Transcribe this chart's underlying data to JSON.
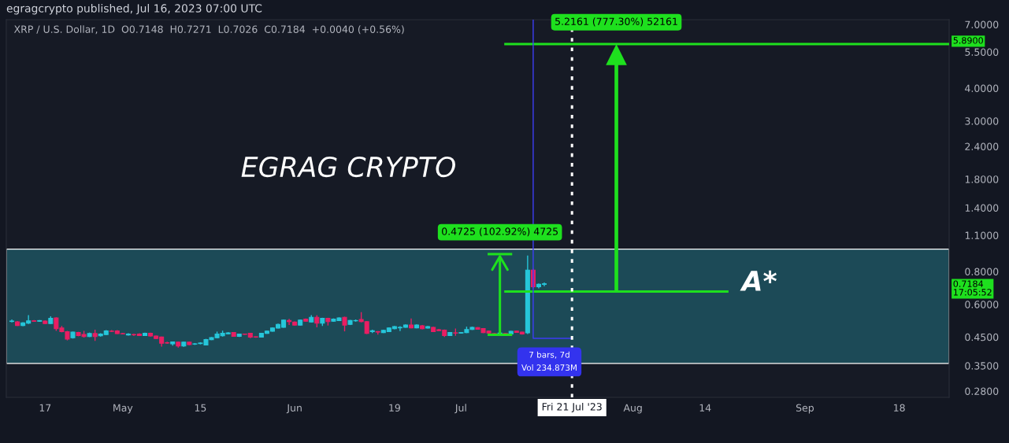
{
  "chart_data": {
    "type": "candlestick",
    "title": "egragcrypto published, Jul 16, 2023 07:00 UTC",
    "subtitle": "XRP / U.S. Dollar, 1D  O0.7148  H0.7271  L0.7026  C0.7184  +0.0040 (+0.56%)",
    "x": [
      "2023-04-11",
      "2023-04-12",
      "2023-04-13",
      "2023-04-14",
      "2023-04-15",
      "2023-04-16",
      "2023-04-17",
      "2023-04-18",
      "2023-04-19",
      "2023-04-20",
      "2023-04-21",
      "2023-04-22",
      "2023-04-23",
      "2023-04-24",
      "2023-04-25",
      "2023-04-26",
      "2023-04-27",
      "2023-04-28",
      "2023-04-29",
      "2023-04-30",
      "2023-05-01",
      "2023-05-02",
      "2023-05-03",
      "2023-05-04",
      "2023-05-05",
      "2023-05-06",
      "2023-05-07",
      "2023-05-08",
      "2023-05-09",
      "2023-05-10",
      "2023-05-11",
      "2023-05-12",
      "2023-05-13",
      "2023-05-14",
      "2023-05-15",
      "2023-05-16",
      "2023-05-17",
      "2023-05-18",
      "2023-05-19",
      "2023-05-20",
      "2023-05-21",
      "2023-05-22",
      "2023-05-23",
      "2023-05-24",
      "2023-05-25",
      "2023-05-26",
      "2023-05-27",
      "2023-05-28",
      "2023-05-29",
      "2023-05-30",
      "2023-05-31",
      "2023-06-01",
      "2023-06-02",
      "2023-06-03",
      "2023-06-04",
      "2023-06-05",
      "2023-06-06",
      "2023-06-07",
      "2023-06-08",
      "2023-06-09",
      "2023-06-10",
      "2023-06-11",
      "2023-06-12",
      "2023-06-13",
      "2023-06-14",
      "2023-06-15",
      "2023-06-16",
      "2023-06-17",
      "2023-06-18",
      "2023-06-19",
      "2023-06-20",
      "2023-06-21",
      "2023-06-22",
      "2023-06-23",
      "2023-06-24",
      "2023-06-25",
      "2023-06-26",
      "2023-06-27",
      "2023-06-28",
      "2023-06-29",
      "2023-06-30",
      "2023-07-01",
      "2023-07-02",
      "2023-07-03",
      "2023-07-04",
      "2023-07-05",
      "2023-07-06",
      "2023-07-07",
      "2023-07-08",
      "2023-07-09",
      "2023-07-10",
      "2023-07-11",
      "2023-07-12",
      "2023-07-13",
      "2023-07-14",
      "2023-07-15",
      "2023-07-16"
    ],
    "ohlc": [
      [
        0.516,
        0.525,
        0.512,
        0.518
      ],
      [
        0.514,
        0.518,
        0.496,
        0.498
      ],
      [
        0.498,
        0.513,
        0.495,
        0.51
      ],
      [
        0.508,
        0.545,
        0.505,
        0.519
      ],
      [
        0.519,
        0.522,
        0.514,
        0.517
      ],
      [
        0.517,
        0.522,
        0.514,
        0.52
      ],
      [
        0.518,
        0.521,
        0.505,
        0.507
      ],
      [
        0.507,
        0.54,
        0.505,
        0.53
      ],
      [
        0.532,
        0.535,
        0.475,
        0.484
      ],
      [
        0.487,
        0.496,
        0.469,
        0.472
      ],
      [
        0.472,
        0.475,
        0.437,
        0.442
      ],
      [
        0.447,
        0.472,
        0.444,
        0.47
      ],
      [
        0.468,
        0.471,
        0.453,
        0.456
      ],
      [
        0.46,
        0.475,
        0.448,
        0.452
      ],
      [
        0.452,
        0.468,
        0.45,
        0.464
      ],
      [
        0.464,
        0.48,
        0.435,
        0.452
      ],
      [
        0.455,
        0.465,
        0.452,
        0.462
      ],
      [
        0.46,
        0.478,
        0.458,
        0.475
      ],
      [
        0.474,
        0.478,
        0.47,
        0.473
      ],
      [
        0.475,
        0.478,
        0.462,
        0.464
      ],
      [
        0.464,
        0.467,
        0.461,
        0.463
      ],
      [
        0.458,
        0.465,
        0.456,
        0.462
      ],
      [
        0.46,
        0.464,
        0.454,
        0.459
      ],
      [
        0.462,
        0.465,
        0.454,
        0.456
      ],
      [
        0.456,
        0.468,
        0.454,
        0.465
      ],
      [
        0.465,
        0.468,
        0.452,
        0.454
      ],
      [
        0.454,
        0.456,
        0.442,
        0.444
      ],
      [
        0.45,
        0.452,
        0.414,
        0.426
      ],
      [
        0.428,
        0.432,
        0.424,
        0.427
      ],
      [
        0.424,
        0.433,
        0.417,
        0.431
      ],
      [
        0.43,
        0.433,
        0.41,
        0.416
      ],
      [
        0.416,
        0.432,
        0.413,
        0.43
      ],
      [
        0.43,
        0.432,
        0.419,
        0.421
      ],
      [
        0.423,
        0.427,
        0.42,
        0.424
      ],
      [
        0.425,
        0.43,
        0.422,
        0.427
      ],
      [
        0.42,
        0.443,
        0.418,
        0.44
      ],
      [
        0.44,
        0.45,
        0.438,
        0.448
      ],
      [
        0.447,
        0.472,
        0.445,
        0.462
      ],
      [
        0.455,
        0.476,
        0.452,
        0.465
      ],
      [
        0.463,
        0.47,
        0.461,
        0.467
      ],
      [
        0.468,
        0.47,
        0.451,
        0.453
      ],
      [
        0.453,
        0.464,
        0.45,
        0.462
      ],
      [
        0.462,
        0.464,
        0.459,
        0.461
      ],
      [
        0.465,
        0.467,
        0.446,
        0.45
      ],
      [
        0.451,
        0.453,
        0.447,
        0.45
      ],
      [
        0.45,
        0.467,
        0.448,
        0.465
      ],
      [
        0.465,
        0.477,
        0.463,
        0.474
      ],
      [
        0.474,
        0.49,
        0.472,
        0.487
      ],
      [
        0.487,
        0.506,
        0.485,
        0.503
      ],
      [
        0.49,
        0.525,
        0.488,
        0.522
      ],
      [
        0.52,
        0.528,
        0.5,
        0.515
      ],
      [
        0.513,
        0.516,
        0.498,
        0.5
      ],
      [
        0.5,
        0.525,
        0.498,
        0.522
      ],
      [
        0.527,
        0.53,
        0.515,
        0.517
      ],
      [
        0.514,
        0.545,
        0.512,
        0.535
      ],
      [
        0.535,
        0.545,
        0.49,
        0.508
      ],
      [
        0.508,
        0.533,
        0.496,
        0.53
      ],
      [
        0.53,
        0.533,
        0.498,
        0.515
      ],
      [
        0.517,
        0.53,
        0.515,
        0.527
      ],
      [
        0.52,
        0.535,
        0.518,
        0.532
      ],
      [
        0.535,
        0.538,
        0.473,
        0.5
      ],
      [
        0.503,
        0.523,
        0.5,
        0.52
      ],
      [
        0.519,
        0.525,
        0.515,
        0.52
      ],
      [
        0.525,
        0.56,
        0.512,
        0.515
      ],
      [
        0.515,
        0.518,
        0.462,
        0.465
      ],
      [
        0.472,
        0.48,
        0.466,
        0.476
      ],
      [
        0.472,
        0.474,
        0.46,
        0.47
      ],
      [
        0.468,
        0.48,
        0.466,
        0.477
      ],
      [
        0.472,
        0.49,
        0.47,
        0.487
      ],
      [
        0.484,
        0.496,
        0.482,
        0.493
      ],
      [
        0.488,
        0.495,
        0.474,
        0.49
      ],
      [
        0.49,
        0.503,
        0.488,
        0.5
      ],
      [
        0.5,
        0.53,
        0.486,
        0.488
      ],
      [
        0.488,
        0.503,
        0.486,
        0.5
      ],
      [
        0.497,
        0.5,
        0.482,
        0.484
      ],
      [
        0.487,
        0.496,
        0.485,
        0.493
      ],
      [
        0.49,
        0.493,
        0.47,
        0.472
      ],
      [
        0.48,
        0.483,
        0.474,
        0.476
      ],
      [
        0.478,
        0.481,
        0.45,
        0.456
      ],
      [
        0.456,
        0.47,
        0.454,
        0.468
      ],
      [
        0.467,
        0.485,
        0.455,
        0.466
      ],
      [
        0.466,
        0.47,
        0.464,
        0.468
      ],
      [
        0.468,
        0.493,
        0.466,
        0.481
      ],
      [
        0.481,
        0.493,
        0.479,
        0.49
      ],
      [
        0.489,
        0.491,
        0.48,
        0.482
      ],
      [
        0.485,
        0.487,
        0.466,
        0.468
      ],
      [
        0.474,
        0.476,
        0.464,
        0.466
      ],
      [
        0.464,
        0.466,
        0.461,
        0.463
      ],
      [
        0.465,
        0.468,
        0.463,
        0.466
      ],
      [
        0.464,
        0.466,
        0.457,
        0.459
      ],
      [
        0.462,
        0.475,
        0.46,
        0.473
      ],
      [
        0.474,
        0.476,
        0.467,
        0.469
      ],
      [
        0.47,
        0.472,
        0.46,
        0.462
      ],
      [
        0.467,
        0.92,
        0.462,
        0.81
      ],
      [
        0.81,
        0.82,
        0.69,
        0.7
      ],
      [
        0.7,
        0.72,
        0.69,
        0.715
      ],
      [
        0.7148,
        0.7271,
        0.7026,
        0.7184
      ]
    ],
    "colors": [
      "#26c6da",
      "#e91e63",
      "#26c6da",
      "#26c6da",
      "#e91e63",
      "#26c6da",
      "#e91e63",
      "#26c6da",
      "#e91e63",
      "#e91e63",
      "#e91e63",
      "#26c6da",
      "#e91e63",
      "#e91e63",
      "#26c6da",
      "#e91e63",
      "#26c6da",
      "#26c6da",
      "#e91e63",
      "#e91e63",
      "#e91e63",
      "#26c6da",
      "#e91e63",
      "#e91e63",
      "#26c6da",
      "#e91e63",
      "#e91e63",
      "#e91e63",
      "#e91e63",
      "#26c6da",
      "#e91e63",
      "#26c6da",
      "#e91e63",
      "#26c6da",
      "#26c6da",
      "#26c6da",
      "#26c6da",
      "#26c6da",
      "#26c6da",
      "#26c6da",
      "#e91e63",
      "#26c6da",
      "#e91e63",
      "#e91e63",
      "#e91e63",
      "#26c6da",
      "#26c6da",
      "#26c6da",
      "#26c6da",
      "#26c6da",
      "#e91e63",
      "#e91e63",
      "#26c6da",
      "#e91e63",
      "#26c6da",
      "#e91e63",
      "#26c6da",
      "#e91e63",
      "#26c6da",
      "#26c6da",
      "#e91e63",
      "#26c6da",
      "#26c6da",
      "#e91e63",
      "#e91e63",
      "#26c6da",
      "#e91e63",
      "#26c6da",
      "#26c6da",
      "#26c6da",
      "#26c6da",
      "#26c6da",
      "#e91e63",
      "#26c6da",
      "#e91e63",
      "#26c6da",
      "#e91e63",
      "#e91e63",
      "#e91e63",
      "#26c6da",
      "#e91e63",
      "#26c6da",
      "#26c6da",
      "#26c6da",
      "#e91e63",
      "#e91e63",
      "#e91e63",
      "#e91e63",
      "#26c6da",
      "#e91e63",
      "#26c6da",
      "#e91e63",
      "#e91e63",
      "#26c6da",
      "#e91e63",
      "#26c6da",
      "#26c6da"
    ],
    "series": [
      {
        "type": "line",
        "color": "#1ee01e",
        "x": [
          "2023-07-06",
          "2023-07-10"
        ],
        "values": [
          0.459,
          0.459
        ]
      },
      {
        "type": "line",
        "color": "#1ee01e",
        "x": [
          "2023-07-06",
          "2023-07-10"
        ],
        "values": [
          0.932,
          0.932
        ]
      },
      {
        "type": "line",
        "color": "#1ee01e",
        "x": [
          "2023-07-09",
          "2023-08-18"
        ],
        "values": [
          0.671,
          0.671
        ]
      },
      {
        "type": "line",
        "color": "#1ee01e",
        "x": [
          "2023-07-09",
          "2023-09-27"
        ],
        "values": [
          5.89,
          5.89
        ]
      },
      {
        "type": "line",
        "color": "#3d3df5",
        "x": [
          "2023-07-14",
          "2023-07-14",
          "2023-07-21"
        ],
        "values": [
          7.3,
          0.445,
          0.445
        ]
      }
    ],
    "marker": "none",
    "line_style": "solid",
    "bands": [
      {
        "axis": "y",
        "from": 0.357,
        "to": 0.974,
        "color": "#1c4a57"
      }
    ],
    "ref_lines": [
      {
        "axis": "x",
        "value": "2023-07-21",
        "label": "Fri 21 Jul '23",
        "color": "#ffffff",
        "line_style": "dotted"
      }
    ],
    "annotations": [
      {
        "text": "0.4725 (102.92%) 4725",
        "x": "2023-07-08",
        "y": 0.932
      },
      {
        "text": "5.2161 (777.30%) 52161",
        "x": "2023-07-29",
        "y": 5.89
      },
      "EGRAG CRYPTO",
      "A*",
      "7 bars, 7d\nVol 234.873M",
      "5.8900",
      "0.7184\n17:05:52"
    ],
    "log": "y",
    "grid": false,
    "xlim": [
      "2023-04-10",
      "2023-09-27"
    ],
    "xticks": [
      {
        "value": "2023-04-17",
        "label": "17"
      },
      {
        "value": "2023-05-01",
        "label": "May"
      },
      {
        "value": "2023-05-15",
        "label": "15"
      },
      {
        "value": "2023-06-01",
        "label": "Jun"
      },
      {
        "value": "2023-06-19",
        "label": "19"
      },
      {
        "value": "2023-07-01",
        "label": "Jul"
      },
      {
        "value": "2023-08-01",
        "label": "Aug"
      },
      {
        "value": "2023-08-14",
        "label": "14"
      },
      {
        "value": "2023-09-01",
        "label": "Sep"
      },
      {
        "value": "2023-09-18",
        "label": "18"
      }
    ],
    "ylim": [
      0.265,
      7.3
    ],
    "yticks": [
      {
        "value": 0.28,
        "label": "0.2800"
      },
      {
        "value": 0.35,
        "label": "0.3500"
      },
      {
        "value": 0.45,
        "label": "0.4500"
      },
      {
        "value": 0.6,
        "label": "0.6000"
      },
      {
        "value": 0.8,
        "label": "0.8000"
      },
      {
        "value": 1.1,
        "label": "1.1000"
      },
      {
        "value": 1.4,
        "label": "1.4000"
      },
      {
        "value": 1.8,
        "label": "1.8000"
      },
      {
        "value": 2.4,
        "label": "2.4000"
      },
      {
        "value": 3.0,
        "label": "3.0000"
      },
      {
        "value": 4.0,
        "label": "4.0000"
      },
      {
        "value": 5.5,
        "label": "5.5000"
      },
      {
        "value": 7.0,
        "label": "7.0000"
      }
    ]
  }
}
